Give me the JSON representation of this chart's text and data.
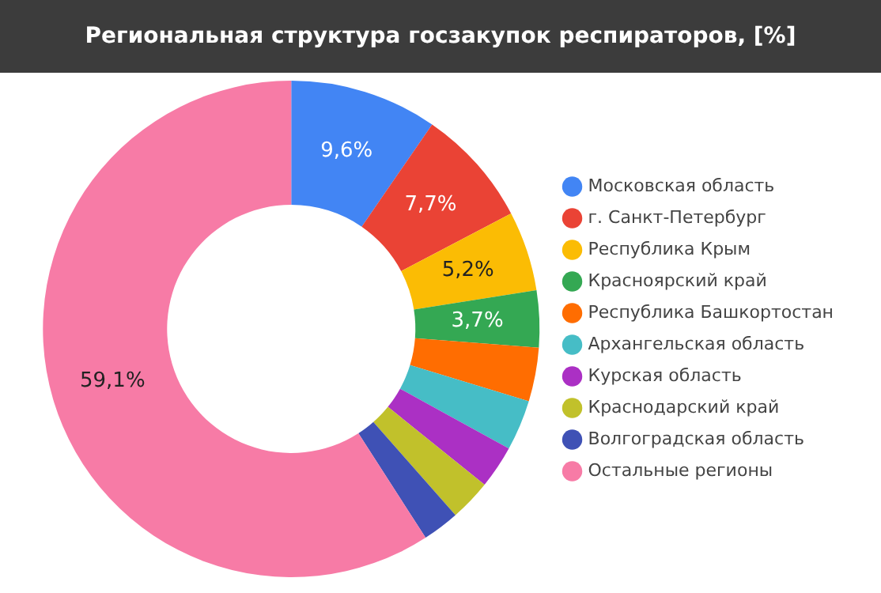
{
  "chart_data": {
    "type": "donut",
    "title": "Региональная структура госзакупок респираторов, [%]",
    "categories": [
      "Московская область",
      "г. Санкт-Петербург",
      "Республика Крым",
      "Красноярский край",
      "Республика Башкортостан",
      "Архангельская область",
      "Курская область",
      "Краснодарский край",
      "Волгоградская область",
      "Остальные регионы"
    ],
    "values": [
      9.6,
      7.7,
      5.2,
      3.7,
      3.5,
      3.3,
      2.8,
      2.7,
      2.4,
      59.1
    ],
    "value_labels": [
      "9,6%",
      "7,7%",
      "5,2%",
      "3,7%",
      null,
      null,
      null,
      null,
      null,
      "59,1%"
    ],
    "colors": [
      "#4285f4",
      "#ea4335",
      "#fbbc04",
      "#34a853",
      "#ff6d01",
      "#46bdc6",
      "#ab30c4",
      "#c1c12b",
      "#3f51b5",
      "#f77ba6"
    ],
    "legend": "right"
  }
}
